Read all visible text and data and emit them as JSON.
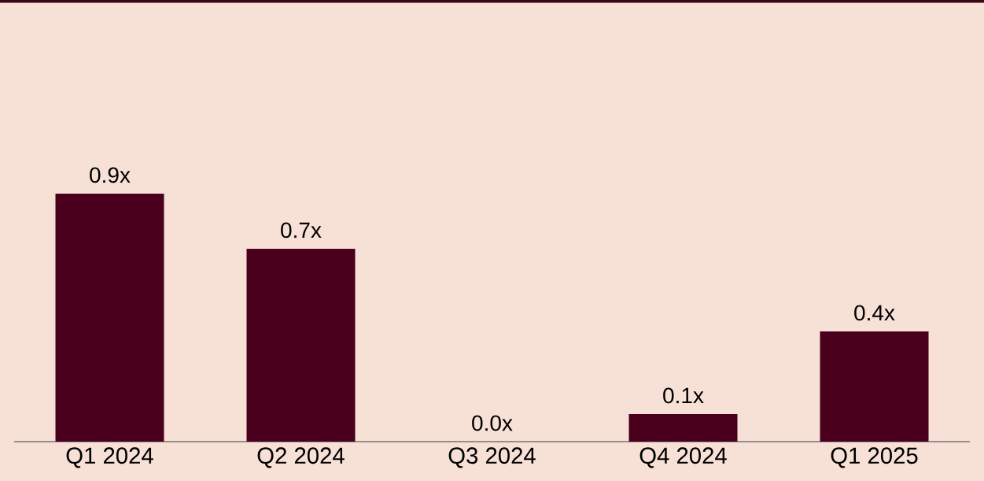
{
  "chart_data": {
    "type": "bar",
    "categories": [
      "Q1 2024",
      "Q2 2024",
      "Q3 2024",
      "Q4 2024",
      "Q1 2025"
    ],
    "values": [
      0.9,
      0.7,
      0.0,
      0.1,
      0.4
    ],
    "value_labels": [
      "0.9x",
      "0.7x",
      "0.0x",
      "0.1x",
      "0.4x"
    ],
    "color": "#4a001c"
  }
}
